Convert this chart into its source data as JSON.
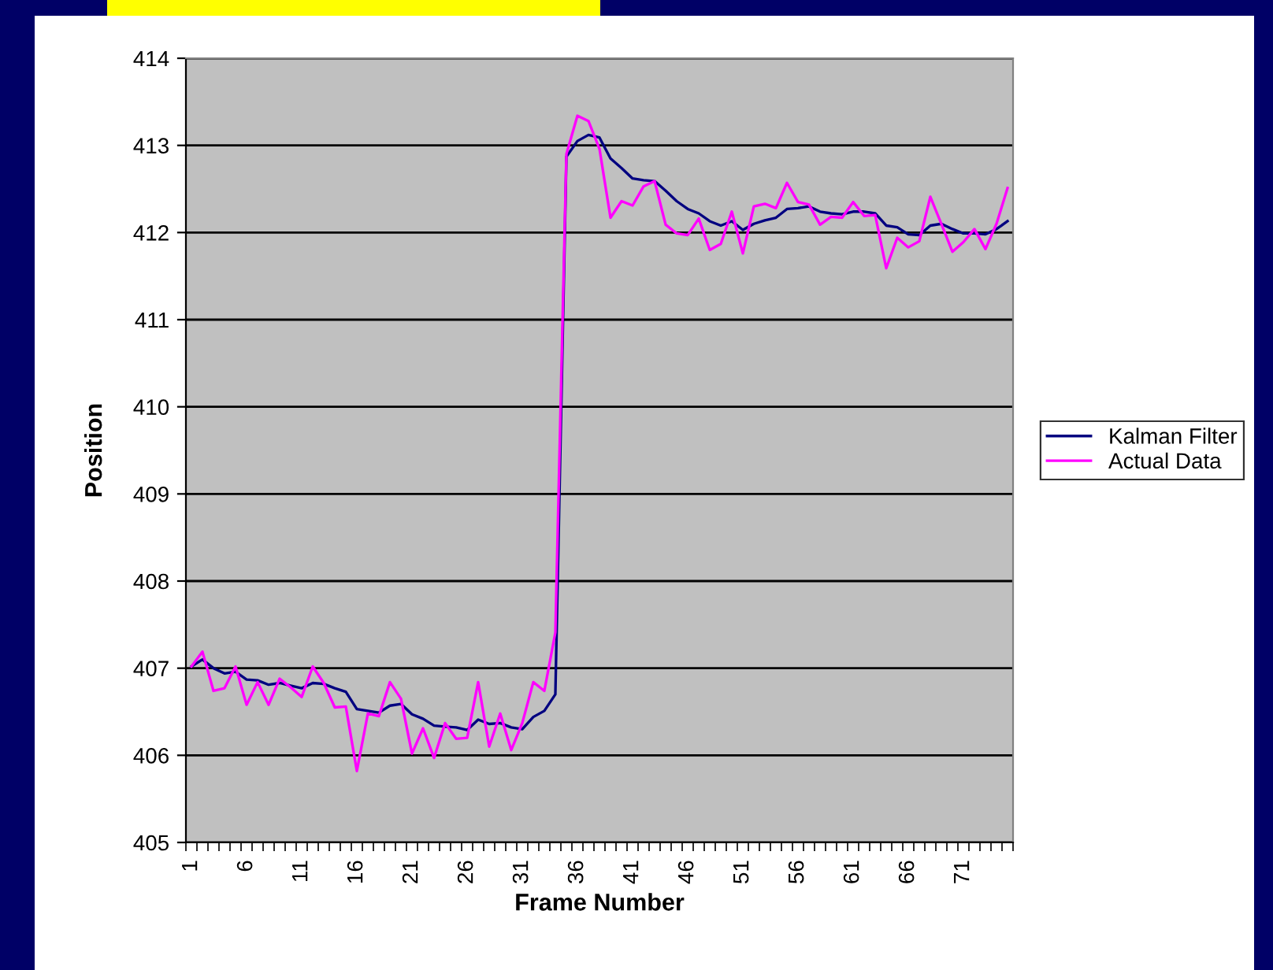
{
  "chart_data": {
    "type": "line",
    "xlabel": "Frame Number",
    "ylabel": "Position",
    "categories": [
      "1",
      null,
      null,
      null,
      null,
      "6",
      null,
      null,
      null,
      null,
      "11",
      null,
      null,
      null,
      null,
      "16",
      null,
      null,
      null,
      null,
      "21",
      null,
      null,
      null,
      null,
      "26",
      null,
      null,
      null,
      null,
      "31",
      null,
      null,
      null,
      null,
      "36",
      null,
      null,
      null,
      null,
      "41",
      null,
      null,
      null,
      null,
      "46",
      null,
      null,
      null,
      null,
      "51",
      null,
      null,
      null,
      null,
      "56",
      null,
      null,
      null,
      null,
      "61",
      null,
      null,
      null,
      null,
      "66",
      null,
      null,
      null,
      null,
      "71",
      null,
      null,
      null,
      null
    ],
    "series": [
      {
        "name": "Kalman Filter",
        "color": "#000080",
        "values": [
          407.02,
          407.1,
          407.0,
          406.94,
          406.96,
          406.87,
          406.86,
          406.81,
          406.83,
          406.8,
          406.77,
          406.83,
          406.82,
          406.77,
          406.73,
          406.53,
          406.51,
          406.49,
          406.57,
          406.59,
          406.47,
          406.42,
          406.34,
          406.33,
          406.32,
          406.29,
          406.41,
          406.36,
          406.37,
          406.32,
          406.3,
          406.44,
          406.51,
          406.7,
          412.87,
          413.05,
          413.12,
          413.09,
          412.85,
          412.74,
          412.62,
          412.6,
          412.59,
          412.48,
          412.36,
          412.27,
          412.22,
          412.13,
          412.08,
          412.13,
          412.03,
          412.1,
          412.14,
          412.17,
          412.27,
          412.28,
          412.3,
          412.24,
          412.22,
          412.21,
          412.24,
          412.24,
          412.22,
          412.08,
          412.06,
          411.98,
          411.97,
          412.08,
          412.1,
          412.04,
          411.99,
          411.99,
          411.98,
          412.04,
          412.13
        ]
      },
      {
        "name": "Actual Data",
        "color": "#ff00ff",
        "values": [
          407.02,
          407.19,
          406.74,
          406.77,
          407.02,
          406.58,
          406.84,
          406.58,
          406.88,
          406.78,
          406.67,
          407.02,
          406.83,
          406.55,
          406.56,
          405.82,
          406.48,
          406.45,
          406.84,
          406.65,
          406.02,
          406.31,
          405.97,
          406.37,
          406.19,
          406.2,
          406.84,
          406.1,
          406.48,
          406.06,
          406.37,
          406.84,
          406.74,
          407.41,
          412.9,
          413.34,
          413.28,
          412.96,
          412.17,
          412.36,
          412.31,
          412.53,
          412.59,
          412.09,
          411.99,
          411.97,
          412.16,
          411.8,
          411.87,
          412.24,
          411.76,
          412.3,
          412.33,
          412.28,
          412.57,
          412.35,
          412.32,
          412.09,
          412.18,
          412.17,
          412.35,
          412.19,
          412.2,
          411.59,
          411.94,
          411.83,
          411.9,
          412.41,
          412.1,
          411.78,
          411.89,
          412.04,
          411.81,
          412.1,
          412.51
        ]
      }
    ],
    "ylim": [
      405,
      414
    ],
    "yticks": [
      405,
      406,
      407,
      408,
      409,
      410,
      411,
      412,
      413,
      414
    ],
    "grid": "y",
    "legend": "right",
    "marker": "none",
    "line_style": "solid"
  }
}
